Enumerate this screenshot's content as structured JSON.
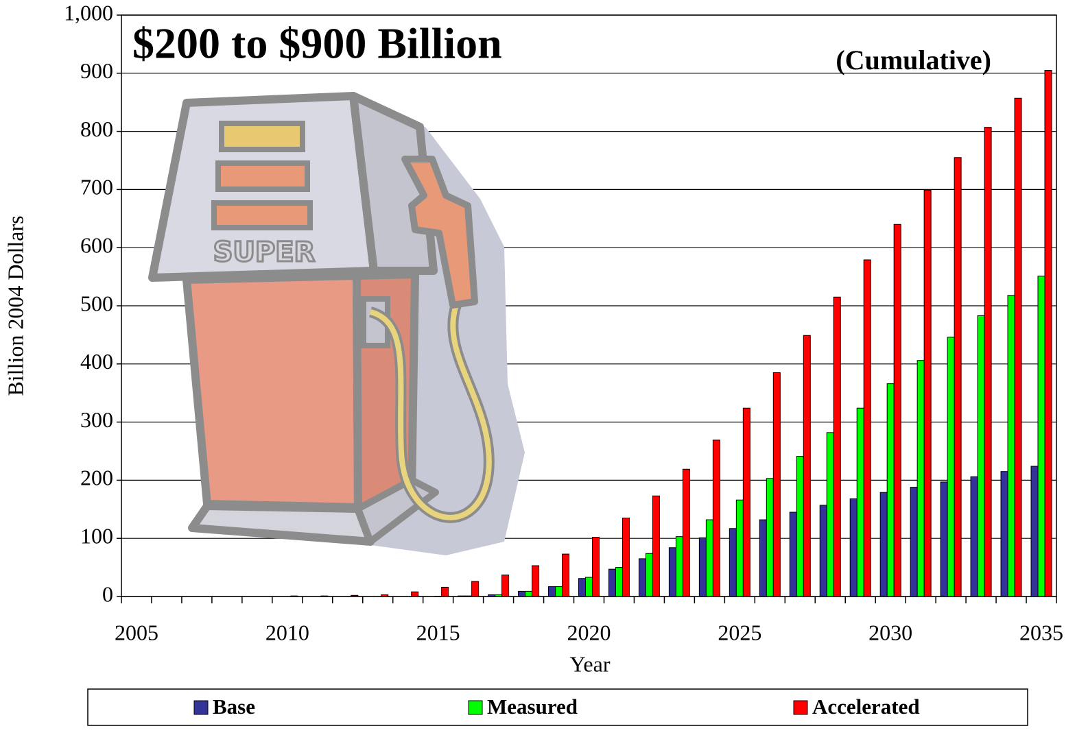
{
  "chart_data": {
    "type": "bar",
    "title": "$200 to $900 Billion",
    "subtitle": "(Cumulative)",
    "illustration_label": "SUPER",
    "x_label": "Year",
    "y_label": "Billion 2004 Dollars",
    "categories": [
      "2005",
      null,
      null,
      null,
      null,
      "2010",
      null,
      null,
      null,
      null,
      "2015",
      null,
      null,
      null,
      null,
      "2020",
      null,
      null,
      null,
      null,
      "2025",
      null,
      null,
      null,
      null,
      "2030",
      null,
      null,
      null,
      null,
      "2035"
    ],
    "series": [
      {
        "name": "Base",
        "color": "#333399",
        "values": [
          0,
          0,
          0,
          0,
          0,
          0,
          0,
          0,
          0,
          0,
          0,
          1,
          3,
          9,
          17,
          31,
          47,
          65,
          84,
          101,
          117,
          132,
          145,
          157,
          168,
          179,
          188,
          197,
          206,
          215,
          224
        ]
      },
      {
        "name": "Measured",
        "color": "#00ff00",
        "values": [
          0,
          0,
          0,
          0,
          0,
          0,
          0,
          0,
          0,
          0,
          0.5,
          1,
          3,
          9,
          17,
          33,
          50,
          74,
          103,
          132,
          166,
          203,
          241,
          282,
          324,
          366,
          406,
          446,
          483,
          518,
          551
        ]
      },
      {
        "name": "Accelerated",
        "color": "#ff0000",
        "values": [
          0,
          0,
          0,
          0,
          0,
          1,
          1,
          2,
          3,
          8,
          16,
          26,
          37,
          53,
          73,
          102,
          135,
          173,
          219,
          269,
          324,
          385,
          449,
          515,
          579,
          640,
          699,
          755,
          807,
          857,
          905
        ]
      }
    ],
    "ylim": [
      0,
      1000
    ],
    "yticks": [
      0,
      100,
      200,
      300,
      400,
      500,
      600,
      700,
      800,
      900,
      {
        "value": 1000,
        "label": "1,000"
      }
    ],
    "grid": true,
    "legend": "bottom"
  }
}
